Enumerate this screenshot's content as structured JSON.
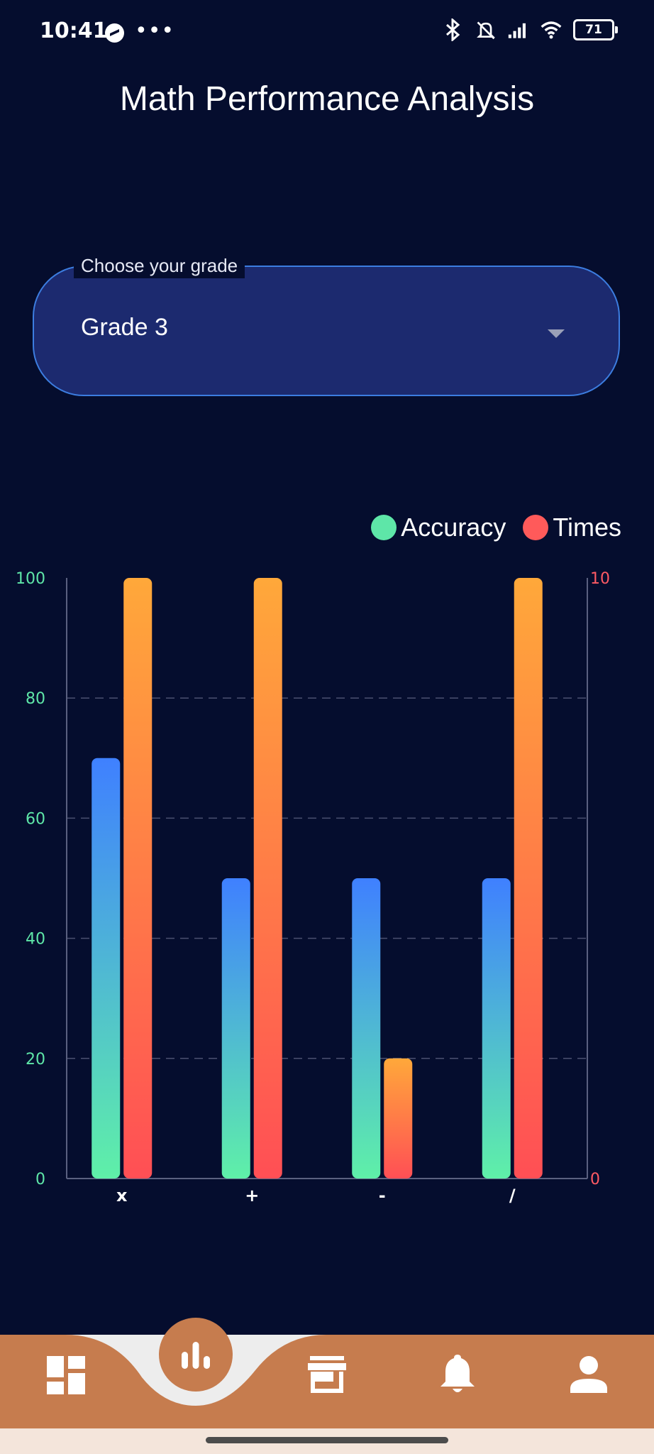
{
  "status_bar": {
    "time": "10:41",
    "battery": "71",
    "icons": [
      "messenger-icon",
      "more-icon",
      "bluetooth-icon",
      "mute-icon",
      "signal-icon",
      "wifi-icon",
      "battery-icon"
    ]
  },
  "header": {
    "title": "Math Performance Analysis"
  },
  "grade_select": {
    "label": "Choose your grade",
    "value": "Grade 3"
  },
  "legend": {
    "accuracy": "Accuracy",
    "times": "Times"
  },
  "colors": {
    "background": "#050d2e",
    "accuracy_dot": "#5ee6a8",
    "times_dot": "#ff5a5a",
    "accuracy_top": "#3f80ff",
    "accuracy_bottom": "#5ff0a8",
    "times_top": "#ffa83a",
    "times_bottom": "#ff4f55",
    "left_axis": "#5ee6a8",
    "right_axis": "#ff5a64",
    "nav": "#c67c4e"
  },
  "chart_data": {
    "type": "bar",
    "categories": [
      "x",
      "+",
      "-",
      "/"
    ],
    "series": [
      {
        "name": "Accuracy",
        "axis": "left",
        "values": [
          70,
          50,
          50,
          50
        ]
      },
      {
        "name": "Times",
        "axis": "right",
        "values": [
          10,
          10,
          2,
          10
        ]
      }
    ],
    "left_axis": {
      "ylim": [
        0,
        100
      ],
      "ticks": [
        "0",
        "20",
        "40",
        "60",
        "80",
        "100"
      ]
    },
    "right_axis": {
      "ylim": [
        0,
        10
      ],
      "ticks": [
        "0",
        "10"
      ]
    },
    "grid": true,
    "legend_position": "top-right"
  },
  "bottom_nav": {
    "items": [
      "dashboard-icon",
      "bar-chart-icon",
      "store-icon",
      "bell-icon",
      "person-icon"
    ],
    "active": "bar-chart-icon"
  }
}
